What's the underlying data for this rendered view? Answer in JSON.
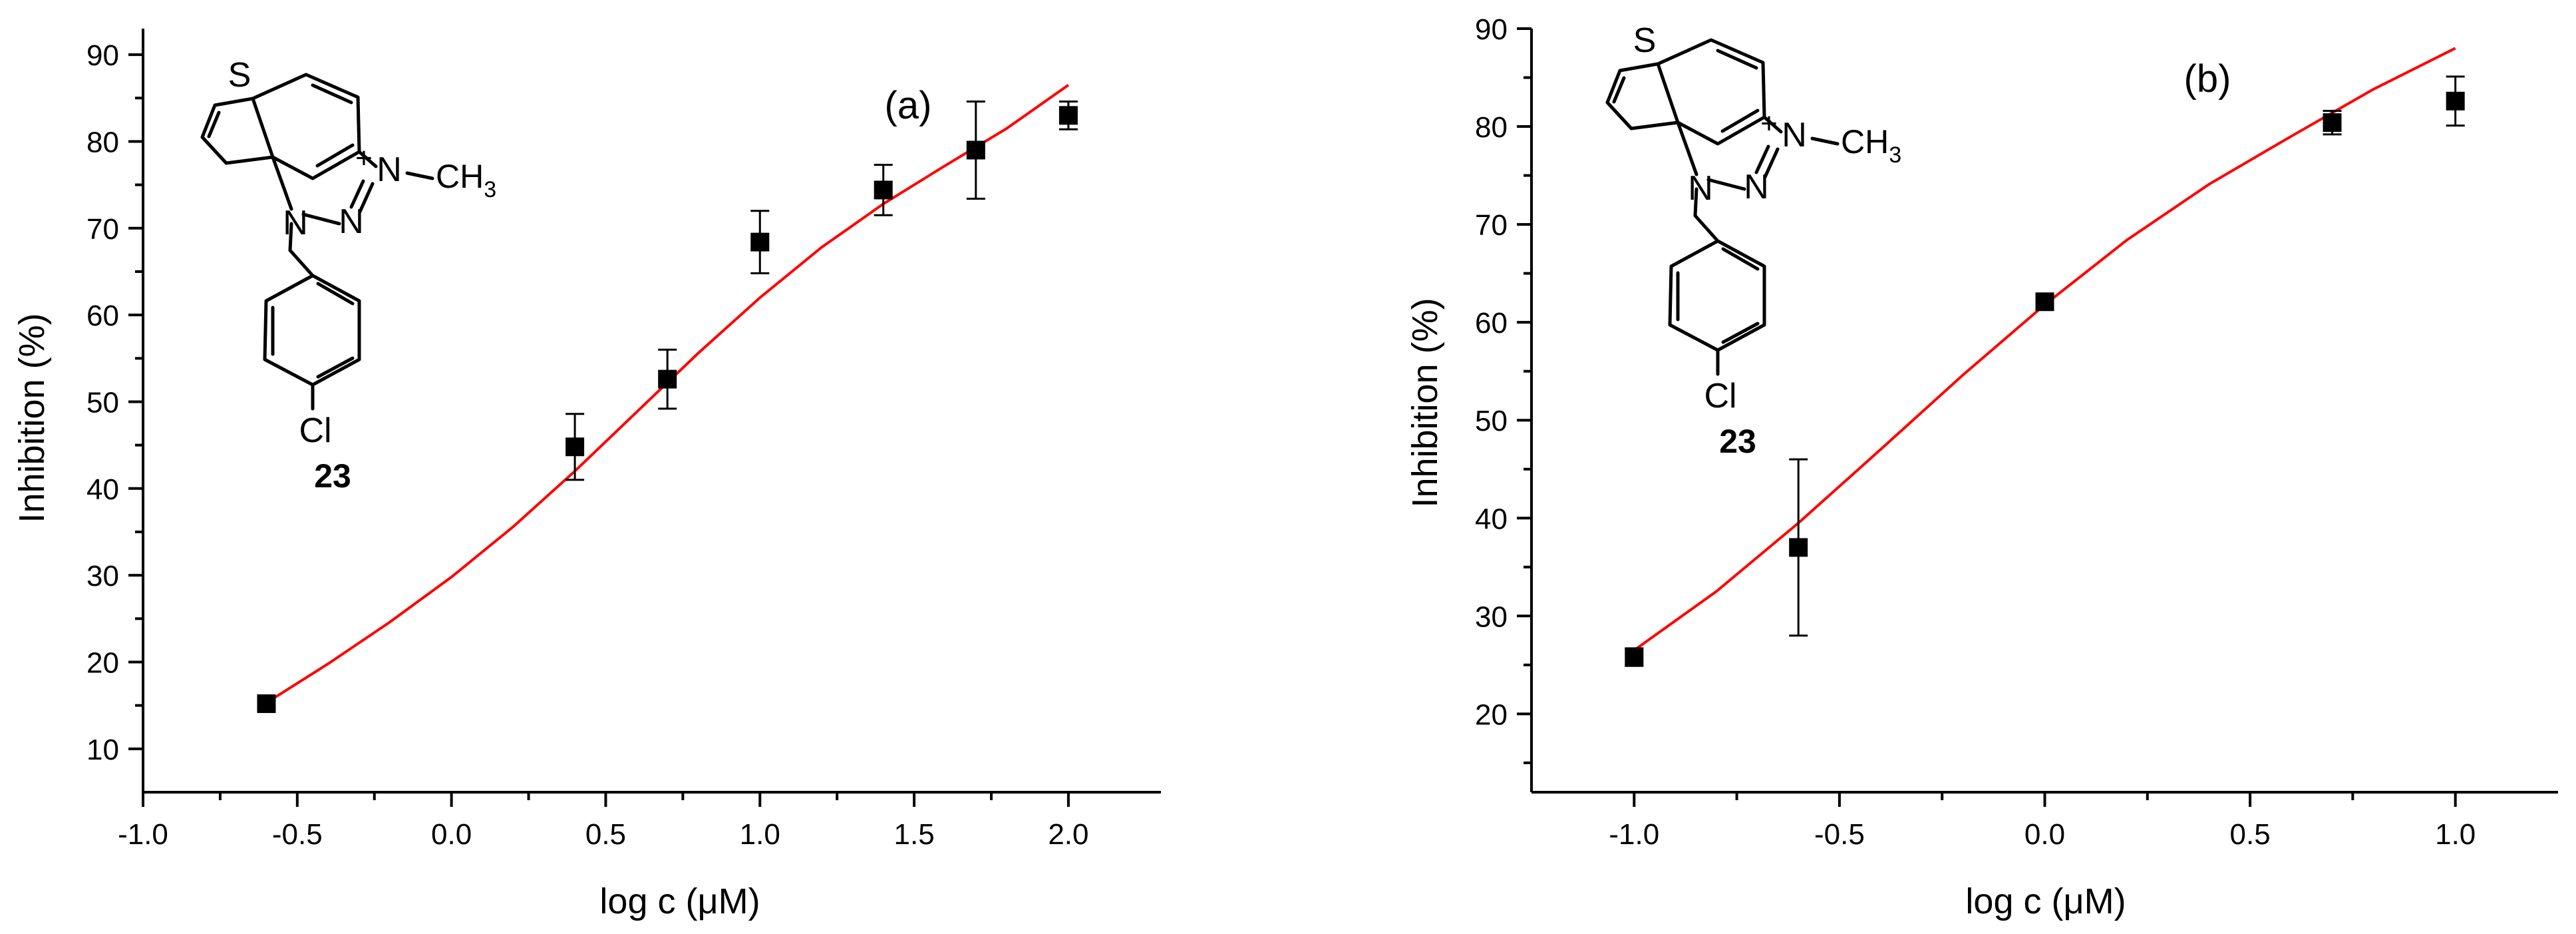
{
  "chart_data": [
    {
      "type": "scatter",
      "panel_label": "(a)",
      "xlabel": "log c (μM)",
      "ylabel": "Inhibition (%)",
      "xlim": [
        -1.0,
        2.3
      ],
      "ylim": [
        5,
        93
      ],
      "x_ticks": [
        -1.0,
        -0.5,
        0.0,
        0.5,
        1.0,
        1.5,
        2.0
      ],
      "x_tick_labels": [
        "-1.0",
        "-0.5",
        "0.0",
        "0.5",
        "1.0",
        "1.5",
        "2.0"
      ],
      "y_ticks": [
        10,
        20,
        30,
        40,
        50,
        60,
        70,
        80,
        90
      ],
      "y_tick_labels": [
        "10",
        "20",
        "30",
        "40",
        "50",
        "60",
        "70",
        "80",
        "90"
      ],
      "points": [
        {
          "x": -0.6,
          "y": 15.2,
          "err": 0.5
        },
        {
          "x": 0.4,
          "y": 44.8,
          "err": 3.8
        },
        {
          "x": 0.7,
          "y": 52.6,
          "err": 3.4
        },
        {
          "x": 1.0,
          "y": 68.4,
          "err": 3.6
        },
        {
          "x": 1.4,
          "y": 74.4,
          "err": 2.9
        },
        {
          "x": 1.7,
          "y": 79.0,
          "err": 5.6
        },
        {
          "x": 2.0,
          "y": 83.0,
          "err": 1.6
        }
      ],
      "fit": {
        "x": [
          -0.6,
          -0.4,
          -0.2,
          0.0,
          0.2,
          0.4,
          0.6,
          0.8,
          1.0,
          1.2,
          1.4,
          1.6,
          1.8,
          2.0
        ],
        "y": [
          15.3,
          19.8,
          24.6,
          29.8,
          35.6,
          42.0,
          48.8,
          55.6,
          62.0,
          67.8,
          72.8,
          77.2,
          81.5,
          86.5
        ],
        "color": "#ff0000"
      },
      "compound": {
        "ring_atoms": [
          "S",
          "N",
          "N",
          "N"
        ],
        "charge": "+",
        "methyl": "CH",
        "methyl_sub": "3",
        "halogen": "Cl",
        "number": "23"
      }
    },
    {
      "type": "scatter",
      "panel_label": "(b)",
      "xlabel": "log c (μM)",
      "ylabel": "Inhibition (%)",
      "xlim": [
        -1.25,
        1.25
      ],
      "ylim": [
        12,
        90
      ],
      "x_ticks": [
        -1.0,
        -0.5,
        0.0,
        0.5,
        1.0
      ],
      "x_tick_labels": [
        "-1.0",
        "-0.5",
        "0.0",
        "0.5",
        "1.0"
      ],
      "y_ticks": [
        20,
        30,
        40,
        50,
        60,
        70,
        80,
        90
      ],
      "y_tick_labels": [
        "20",
        "30",
        "40",
        "50",
        "60",
        "70",
        "80",
        "90"
      ],
      "points": [
        {
          "x": -1.0,
          "y": 25.8,
          "err": 0.9
        },
        {
          "x": -0.6,
          "y": 37.0,
          "err": 9.0
        },
        {
          "x": 0.0,
          "y": 62.1,
          "err": 0.3
        },
        {
          "x": 0.7,
          "y": 80.4,
          "err": 1.2
        },
        {
          "x": 1.0,
          "y": 82.6,
          "err": 2.5
        }
      ],
      "fit": {
        "x": [
          -1.0,
          -0.8,
          -0.6,
          -0.4,
          -0.2,
          0.0,
          0.2,
          0.4,
          0.6,
          0.8,
          1.0
        ],
        "y": [
          26.5,
          32.5,
          39.5,
          47.0,
          54.6,
          61.8,
          68.4,
          74.1,
          79.0,
          83.8,
          88.0
        ],
        "color": "#ff0000"
      },
      "compound": {
        "ring_atoms": [
          "S",
          "N",
          "N",
          "N"
        ],
        "charge": "+",
        "methyl": "CH",
        "methyl_sub": "3",
        "halogen": "Cl",
        "number": "23"
      }
    }
  ]
}
